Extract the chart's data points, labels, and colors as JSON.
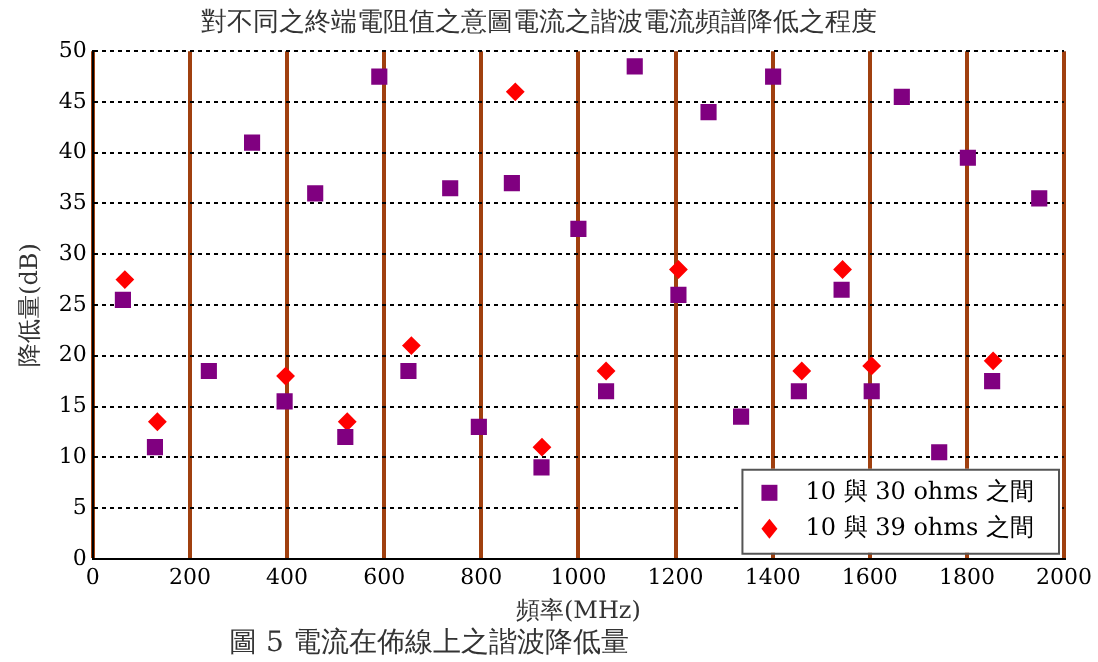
{
  "chart_data": {
    "type": "scatter",
    "title": "對不同之終端電阻值之意圖電流之諧波電流頻譜降低之程度",
    "xlabel": "頻率(MHz)",
    "ylabel": "降低量(dB)",
    "annotations": [
      "圖 5 電流在佈線上之諧波降低量"
    ],
    "xlim": [
      0,
      2000
    ],
    "xticks": [
      0,
      200,
      400,
      600,
      800,
      1000,
      1200,
      1400,
      1600,
      1800,
      2000
    ],
    "ylim": [
      0,
      50
    ],
    "yticks": [
      0,
      5,
      10,
      15,
      20,
      25,
      30,
      35,
      40,
      45,
      50
    ],
    "grid": true,
    "legend": "bottom right",
    "series": [
      {
        "name": "10 與 30 ohms 之間",
        "color": "#800080",
        "marker": "square",
        "x": [
          62,
          128,
          239,
          328,
          395,
          458,
          520,
          590,
          650,
          736,
          795,
          863,
          924,
          1000,
          1057,
          1116,
          1206,
          1268,
          1335,
          1401,
          1454,
          1542,
          1604,
          1666,
          1743,
          1802,
          1852,
          1949
        ],
        "values": [
          25.5,
          11,
          18.5,
          41,
          15.5,
          36,
          12,
          47.5,
          18.5,
          36.5,
          13,
          37,
          9,
          32.5,
          16.5,
          48.5,
          26,
          44,
          14,
          47.5,
          16.5,
          26.5,
          16.5,
          45.5,
          10.5,
          39.5,
          17.5,
          35.5
        ]
      },
      {
        "name": "10 與 39 ohms 之間",
        "color": "#ff0000",
        "marker": "diamond",
        "x": [
          66,
          133,
          397,
          524,
          656,
          870,
          925,
          1057,
          1206,
          1460,
          1544,
          1604,
          1854
        ],
        "values": [
          27.5,
          13.5,
          18,
          13.5,
          21,
          46,
          11,
          18.5,
          28.5,
          18.5,
          28.5,
          19,
          19.5
        ]
      }
    ]
  }
}
